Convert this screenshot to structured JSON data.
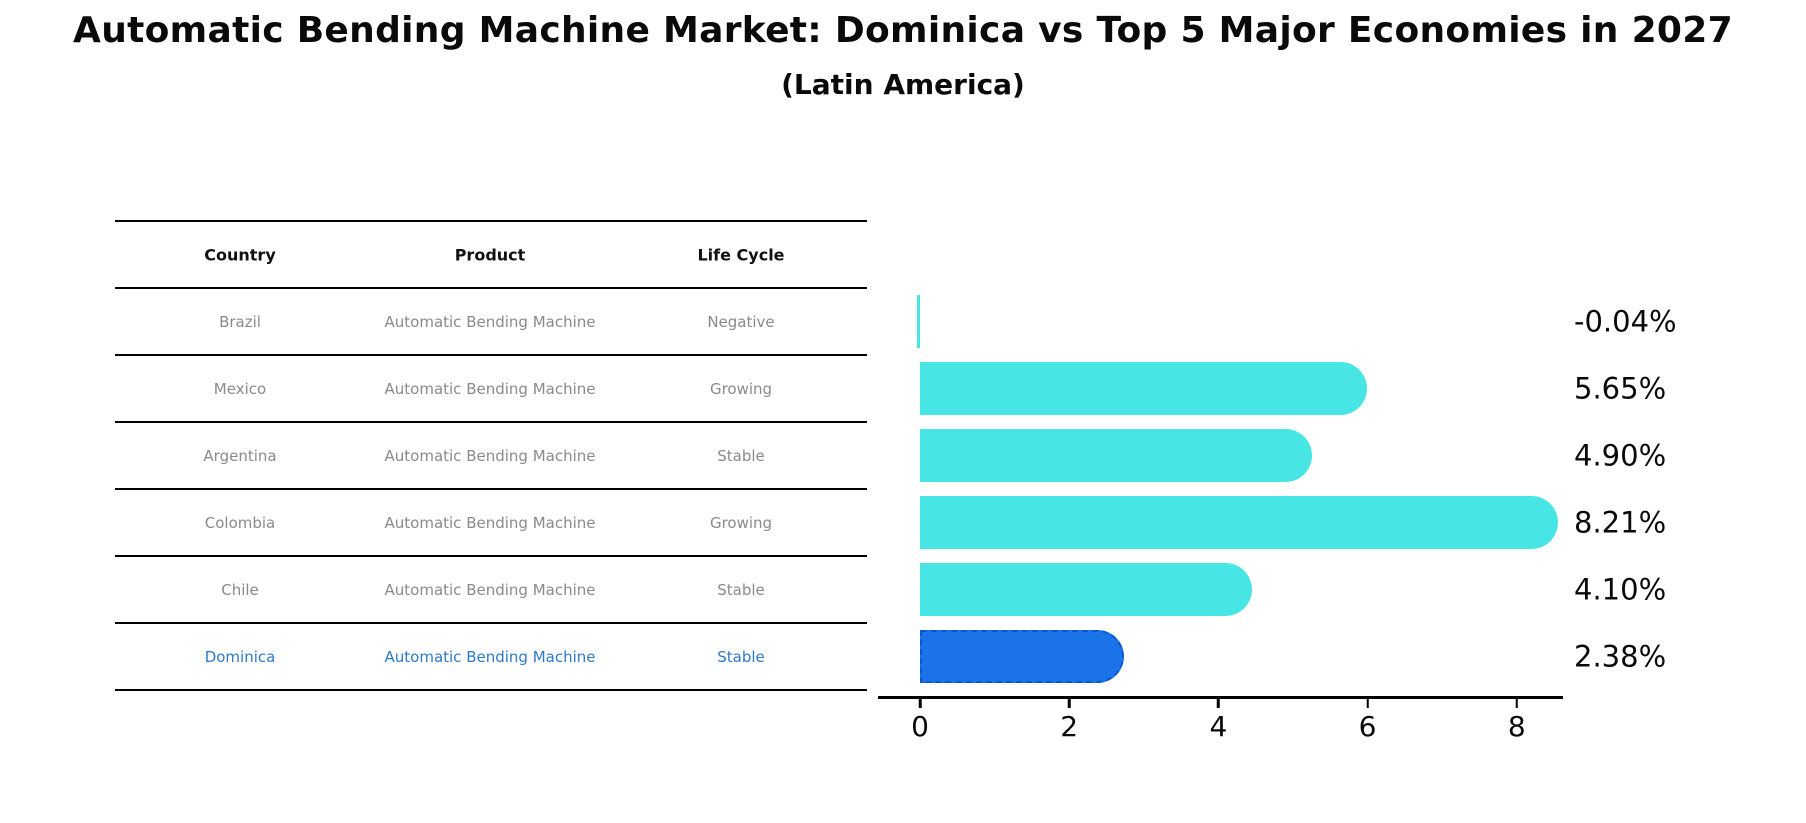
{
  "title": "Automatic Bending Machine Market: Dominica vs Top 5 Major Economies in 2027",
  "subtitle": "(Latin America)",
  "table": {
    "columns": [
      "Country",
      "Product",
      "Life Cycle"
    ],
    "rows": [
      {
        "country": "Brazil",
        "product": "Automatic Bending Machine",
        "life_cycle": "Negative",
        "highlight": false
      },
      {
        "country": "Mexico",
        "product": "Automatic Bending Machine",
        "life_cycle": "Growing",
        "highlight": false
      },
      {
        "country": "Argentina",
        "product": "Automatic Bending Machine",
        "life_cycle": "Stable",
        "highlight": false
      },
      {
        "country": "Colombia",
        "product": "Automatic Bending Machine",
        "life_cycle": "Growing",
        "highlight": false
      },
      {
        "country": "Chile",
        "product": "Automatic Bending Machine",
        "life_cycle": "Stable",
        "highlight": false
      },
      {
        "country": "Dominica",
        "product": "Automatic Bending Machine",
        "life_cycle": "Stable",
        "highlight": true
      }
    ]
  },
  "chart_data": {
    "type": "bar",
    "orientation": "horizontal",
    "title": "Automatic Bending Machine Market: Dominica vs Top 5 Major Economies in 2027",
    "subtitle": "(Latin America)",
    "categories": [
      "Brazil",
      "Mexico",
      "Argentina",
      "Colombia",
      "Chile",
      "Dominica"
    ],
    "values": [
      -0.04,
      5.65,
      4.9,
      8.21,
      4.1,
      2.38
    ],
    "value_labels": [
      "-0.04%",
      "5.65%",
      "4.90%",
      "8.21%",
      "4.10%",
      "2.38%"
    ],
    "xticks": [
      0,
      2,
      4,
      6,
      8
    ],
    "xtick_labels": [
      "0",
      "2",
      "4",
      "6",
      "8"
    ],
    "xlim": [
      -0.57,
      8.62
    ],
    "grid": false,
    "legend": "none",
    "highlight_index": 5,
    "bar_color": "#48e5e5",
    "highlight_bar_color": "#1a73e8",
    "highlight_border_color": "#0b57cf",
    "highlight_text_color": "#2e79c7",
    "text_color": "#8a8a8a"
  }
}
